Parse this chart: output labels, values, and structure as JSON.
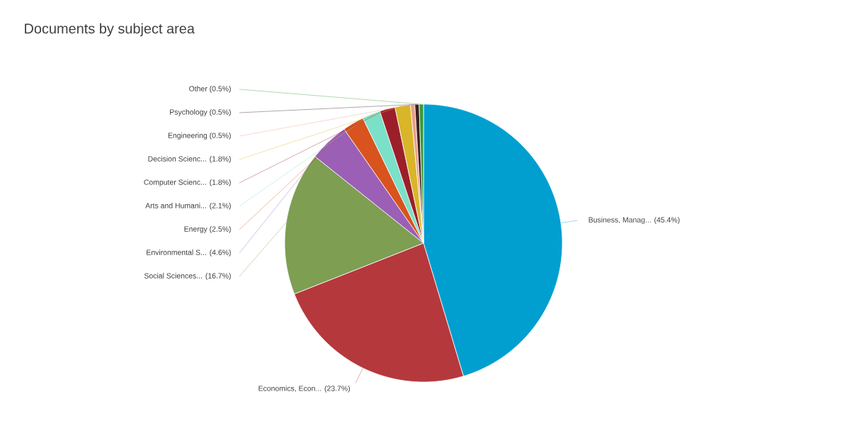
{
  "chart_data": {
    "type": "pie",
    "title": "Documents by subject area",
    "categories": [
      "Business, Manag...",
      "Economics, Econ...",
      "Social Sciences...",
      "Environmental S...",
      "Energy",
      "Arts and Humani...",
      "Computer Scienc...",
      "Decision Scienc...",
      "Engineering",
      "Psychology",
      "Other"
    ],
    "values": [
      45.4,
      23.7,
      16.7,
      4.6,
      2.5,
      2.1,
      1.8,
      1.8,
      0.5,
      0.5,
      0.5
    ],
    "value_labels": [
      "(45.4%)",
      "(23.7%)",
      "(16.7%)",
      "(4.6%)",
      "(2.5%)",
      "(2.1%)",
      "(1.8%)",
      "(1.8%)",
      "(0.5%)",
      "(0.5%)",
      "(0.5%)"
    ],
    "colors": [
      "#009fd0",
      "#b5383d",
      "#7e9e52",
      "#9b5fb5",
      "#d9531e",
      "#7be0c8",
      "#9b1f2a",
      "#d9b52a",
      "#e8a088",
      "#3b1f1f",
      "#3a9a3a"
    ]
  }
}
